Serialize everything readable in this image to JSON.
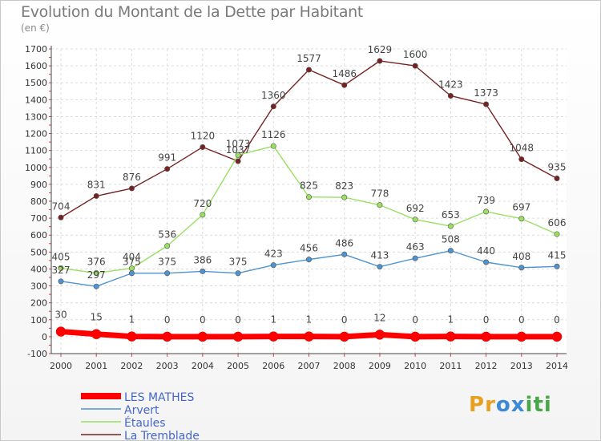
{
  "title": "Evolution du Montant de la Dette par Habitant",
  "unit_label": "(en €)",
  "logo": {
    "text": "Proxiti",
    "letters": [
      "P",
      "r",
      "o",
      "x",
      "i",
      "t",
      "i"
    ],
    "colors": [
      "#e8a020",
      "#e8a020",
      "#3a8ad8",
      "#3a8ad8",
      "#48a848",
      "#48a848",
      "#48a848"
    ]
  },
  "chart_data": {
    "type": "line",
    "title": "Evolution du Montant de la Dette par Habitant",
    "ylabel": "(en €)",
    "xlabel": "",
    "x": [
      "2000",
      "2001",
      "2002",
      "2003",
      "2004",
      "2005",
      "2006",
      "2007",
      "2008",
      "2009",
      "2010",
      "2011",
      "2012",
      "2013",
      "2014"
    ],
    "ylim": [
      -100,
      1700
    ],
    "yticks": [
      "-100",
      "0",
      "100",
      "200",
      "300",
      "400",
      "500",
      "600",
      "700",
      "800",
      "900",
      "1000",
      "1100",
      "1200",
      "1300",
      "1400",
      "1500",
      "1600",
      "1700"
    ],
    "grid": true,
    "legend_position": "bottom-left",
    "series": [
      {
        "name": "LES MATHES",
        "color": "#ff0000",
        "thick": true,
        "values": [
          30,
          15,
          1,
          0,
          0,
          0,
          1,
          1,
          0,
          12,
          0,
          1,
          0,
          0,
          0
        ],
        "labels": [
          "30",
          "15",
          "1",
          "0",
          "0",
          "0",
          "1",
          "1",
          "0",
          "12",
          "0",
          "1",
          "0",
          "0",
          "0"
        ]
      },
      {
        "name": "Arvert",
        "color": "#4f94d0",
        "thick": false,
        "values": [
          327,
          297,
          375,
          375,
          386,
          375,
          423,
          456,
          486,
          413,
          463,
          508,
          440,
          408,
          415
        ],
        "labels": [
          "327",
          "297",
          "375",
          "375",
          "386",
          "375",
          "423",
          "456",
          "486",
          "413",
          "463",
          "508",
          "440",
          "408",
          "415"
        ]
      },
      {
        "name": "Étaules",
        "color": "#99e060",
        "thick": false,
        "values": [
          405,
          376,
          404,
          536,
          720,
          1073,
          1126,
          825,
          823,
          778,
          692,
          653,
          739,
          697,
          606
        ],
        "labels": [
          "405",
          "376",
          "404",
          "536",
          "720",
          "1073",
          "1126",
          "825",
          "823",
          "778",
          "692",
          "653",
          "739",
          "697",
          "606"
        ]
      },
      {
        "name": "La Tremblade",
        "color": "#772222",
        "thick": false,
        "values": [
          704,
          831,
          876,
          991,
          1120,
          1037,
          1360,
          1577,
          1486,
          1629,
          1600,
          1423,
          1373,
          1048,
          935
        ],
        "labels": [
          "704",
          "831",
          "876",
          "991",
          "1120",
          "1037",
          "1360",
          "1577",
          "1486",
          "1629",
          "1600",
          "1423",
          "1373",
          "1048",
          "935"
        ]
      }
    ]
  }
}
